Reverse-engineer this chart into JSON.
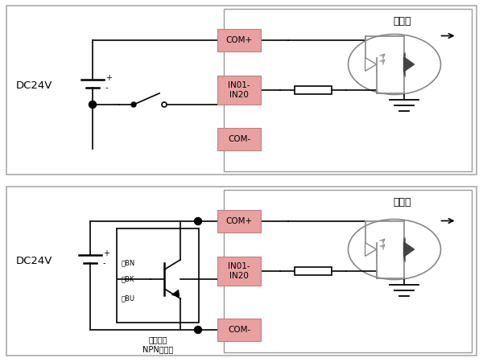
{
  "bg_color": "#ffffff",
  "label_bg": "#e8a0a0",
  "label_edge": "#c08080",
  "wire_color": "#000000",
  "gray": "#888888",
  "dark": "#444444",
  "diagram1": {
    "title": "接线盒",
    "dc_label": "DC24V",
    "com_plus": "COM+",
    "in_label": "IN01-\nIN20",
    "com_minus": "COM-"
  },
  "diagram2": {
    "title": "接线盒",
    "dc_label": "DC24V",
    "com_plus": "COM+",
    "in_label": "IN01-\nIN20",
    "com_minus": "COM-",
    "proximity_line1": "接近开关",
    "proximity_line2": "NPN常开型",
    "bn_label": "棕BN",
    "bk_label": "黑BK",
    "bu_label": "蓝BU"
  }
}
